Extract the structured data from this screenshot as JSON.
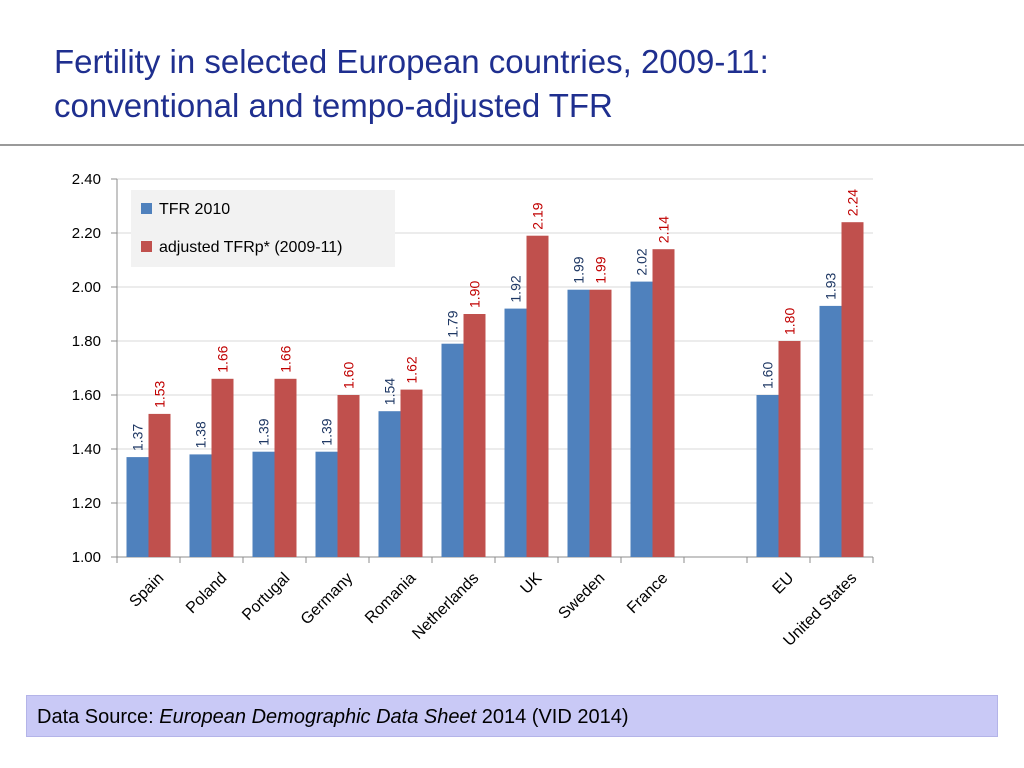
{
  "slide": {
    "title_line1": "Fertility in selected European countries, 2009-11:",
    "title_line2": "conventional and tempo-adjusted TFR"
  },
  "source": {
    "prefix": "Data Source: ",
    "title": "European Demographic Data Sheet",
    "suffix": " 2014 (VID 2014)"
  },
  "colors": {
    "series_tfr": "#4f81bd",
    "series_adjusted": "#c0504d",
    "label_tfr": "#1f3864",
    "label_adjusted": "#c00000",
    "title": "#1f2f8f"
  },
  "chart_data": {
    "type": "bar",
    "title": "",
    "xlabel": "",
    "ylabel": "",
    "ylim": [
      1.0,
      2.4
    ],
    "yticks": [
      "1.00",
      "1.20",
      "1.40",
      "1.60",
      "1.80",
      "2.00",
      "2.20",
      "2.40"
    ],
    "grid": true,
    "legend_position": "top-left",
    "categories": [
      "Spain",
      "Poland",
      "Portugal",
      "Germany",
      "Romania",
      "Netherlands",
      "UK",
      "Sweden",
      "France",
      "",
      "EU",
      "United States"
    ],
    "series": [
      {
        "name": "TFR 2010",
        "values": [
          1.37,
          1.38,
          1.39,
          1.39,
          1.54,
          1.79,
          1.92,
          1.99,
          2.02,
          null,
          1.6,
          1.93
        ],
        "labels": [
          "1.37",
          "1.38",
          "1.39",
          "1.39",
          "1.54",
          "1.79",
          "1.92",
          "1.99",
          "2.02",
          "",
          "1.60",
          "1.93"
        ]
      },
      {
        "name": "adjusted TFRp* (2009-11)",
        "values": [
          1.53,
          1.66,
          1.66,
          1.6,
          1.62,
          1.9,
          2.19,
          1.99,
          2.14,
          null,
          1.8,
          2.24
        ],
        "labels": [
          "1.53",
          "1.66",
          "1.66",
          "1.60",
          "1.62",
          "1.90",
          "2.19",
          "1.99",
          "2.14",
          "",
          "1.80",
          "2.24"
        ]
      }
    ]
  }
}
